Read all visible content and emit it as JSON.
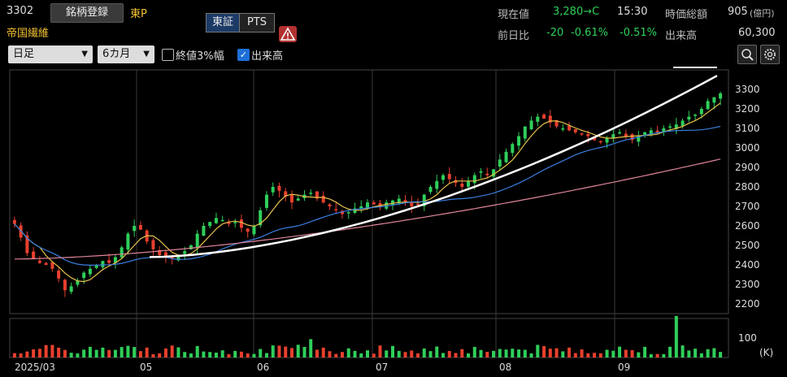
{
  "header": {
    "code": "3302",
    "register_button": "銘柄登録",
    "market": "東P",
    "company_name": "帝国繊維",
    "exchange_tabs": [
      "東証",
      "PTS"
    ],
    "current_price_label": "現在値",
    "current_price": "3,280→C",
    "current_time": "15:30",
    "market_cap_label": "時価総額",
    "market_cap_value": "905",
    "market_cap_unit": "(億円)",
    "change_label": "前日比",
    "change_value": "-20",
    "change_pct1": "-0.61%",
    "change_pct2": "-0.51%",
    "volume_label": "出来高",
    "volume_value": "60,300"
  },
  "controls": {
    "interval": "日足",
    "range": "6カ月",
    "close3_label": "終値3%幅",
    "close3_checked": false,
    "volume_label": "出来高",
    "volume_checked": true
  },
  "colors": {
    "up": "#2fcf5a",
    "down": "#e8402e",
    "ma_short": "#e6c04a",
    "ma_mid": "#3a7ee0",
    "ma_long": "#e0869a",
    "trendline": "#ffffff"
  },
  "chart_data": {
    "type": "candlestick",
    "y_ticks": [
      "3300",
      "3200",
      "3100",
      "3000",
      "2900",
      "2800",
      "2700",
      "2600",
      "2500",
      "2400",
      "2300",
      "2200"
    ],
    "ylim": [
      2150,
      3400
    ],
    "x_ticks": [
      "2025/03",
      "05",
      "06",
      "07",
      "08",
      "09"
    ],
    "volume_tick": "100",
    "volume_unit": "(K)",
    "approx_closes": [
      2610,
      2540,
      2460,
      2430,
      2410,
      2400,
      2380,
      2330,
      2270,
      2290,
      2320,
      2360,
      2380,
      2400,
      2420,
      2410,
      2440,
      2490,
      2560,
      2600,
      2580,
      2520,
      2480,
      2450,
      2440,
      2430,
      2450,
      2470,
      2500,
      2560,
      2600,
      2620,
      2640,
      2630,
      2610,
      2620,
      2590,
      2570,
      2600,
      2680,
      2760,
      2800,
      2780,
      2750,
      2720,
      2740,
      2760,
      2770,
      2740,
      2720,
      2700,
      2680,
      2660,
      2670,
      2690,
      2700,
      2720,
      2710,
      2700,
      2720,
      2730,
      2740,
      2720,
      2700,
      2710,
      2760,
      2800,
      2830,
      2860,
      2840,
      2820,
      2800,
      2830,
      2860,
      2880,
      2860,
      2890,
      2940,
      2980,
      3020,
      3060,
      3110,
      3140,
      3160,
      3150,
      3130,
      3110,
      3100,
      3090,
      3080,
      3070,
      3060,
      3040,
      3030,
      3050,
      3070,
      3080,
      3060,
      3040,
      3060,
      3080,
      3090,
      3080,
      3100,
      3110,
      3120,
      3140,
      3160,
      3170,
      3200,
      3240,
      3260,
      3280
    ]
  }
}
